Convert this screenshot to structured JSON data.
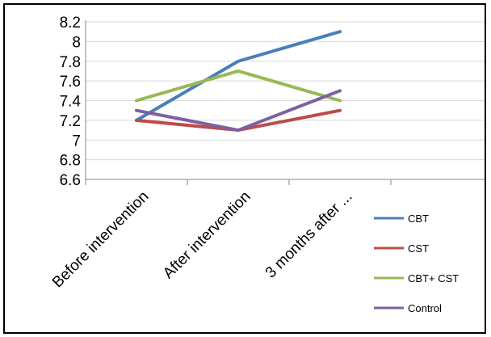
{
  "chart_data": {
    "type": "line",
    "categories": [
      "Before intervention",
      "After intervention",
      "3 months after ..."
    ],
    "series": [
      {
        "name": "CBT",
        "values": [
          7.2,
          7.8,
          8.1
        ],
        "color": "#4a7ebb"
      },
      {
        "name": "CST",
        "values": [
          7.2,
          7.1,
          7.3
        ],
        "color": "#be4b48"
      },
      {
        "name": "CBT+ CST",
        "values": [
          7.4,
          7.7,
          7.4
        ],
        "color": "#98b954"
      },
      {
        "name": "Control",
        "values": [
          7.3,
          7.1,
          7.5
        ],
        "color": "#7d60a0"
      }
    ],
    "yticks": [
      "8.2",
      "8",
      "7.8",
      "7.6",
      "7.4",
      "7.2",
      "7",
      "6.8",
      "6.6"
    ],
    "ylim": [
      6.6,
      8.2
    ],
    "grid": true,
    "legend_position": "right",
    "title": "",
    "xlabel": "",
    "ylabel": ""
  }
}
